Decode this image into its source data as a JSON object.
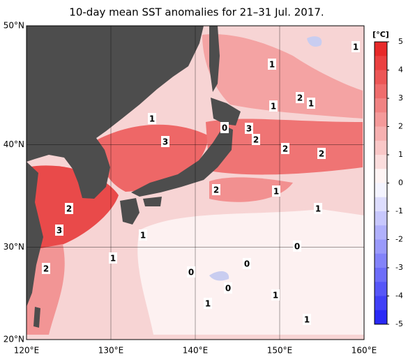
{
  "title": "10-day mean SST anomalies for 21–31 Jul. 2017.",
  "map": {
    "xlim": [
      120,
      160
    ],
    "ylim": [
      20,
      50
    ],
    "xticks": [
      {
        "value": 120,
        "label": "120°E"
      },
      {
        "value": 130,
        "label": "130°E"
      },
      {
        "value": 140,
        "label": "140°E"
      },
      {
        "value": 150,
        "label": "150°E"
      },
      {
        "value": 160,
        "label": "160°E"
      }
    ],
    "yticks": [
      {
        "value": 20,
        "label": "20°N"
      },
      {
        "value": 30,
        "label": "30°N"
      },
      {
        "value": 40,
        "label": "40°N"
      },
      {
        "value": 50,
        "label": "50°N"
      }
    ],
    "contour_labels": [
      "1",
      "1",
      "1",
      "2",
      "1",
      "1",
      "0",
      "3",
      "3",
      "2",
      "2",
      "2",
      "2",
      "1",
      "2",
      "1",
      "3",
      "1",
      "0",
      "1",
      "0",
      "2",
      "0",
      "0",
      "1",
      "1",
      "1"
    ]
  },
  "colorbar": {
    "label": "[°C]",
    "lim": [
      -5,
      5
    ],
    "ticks": [
      5,
      4,
      3,
      2,
      1,
      0,
      -1,
      -2,
      -3,
      -4,
      -5
    ]
  }
}
